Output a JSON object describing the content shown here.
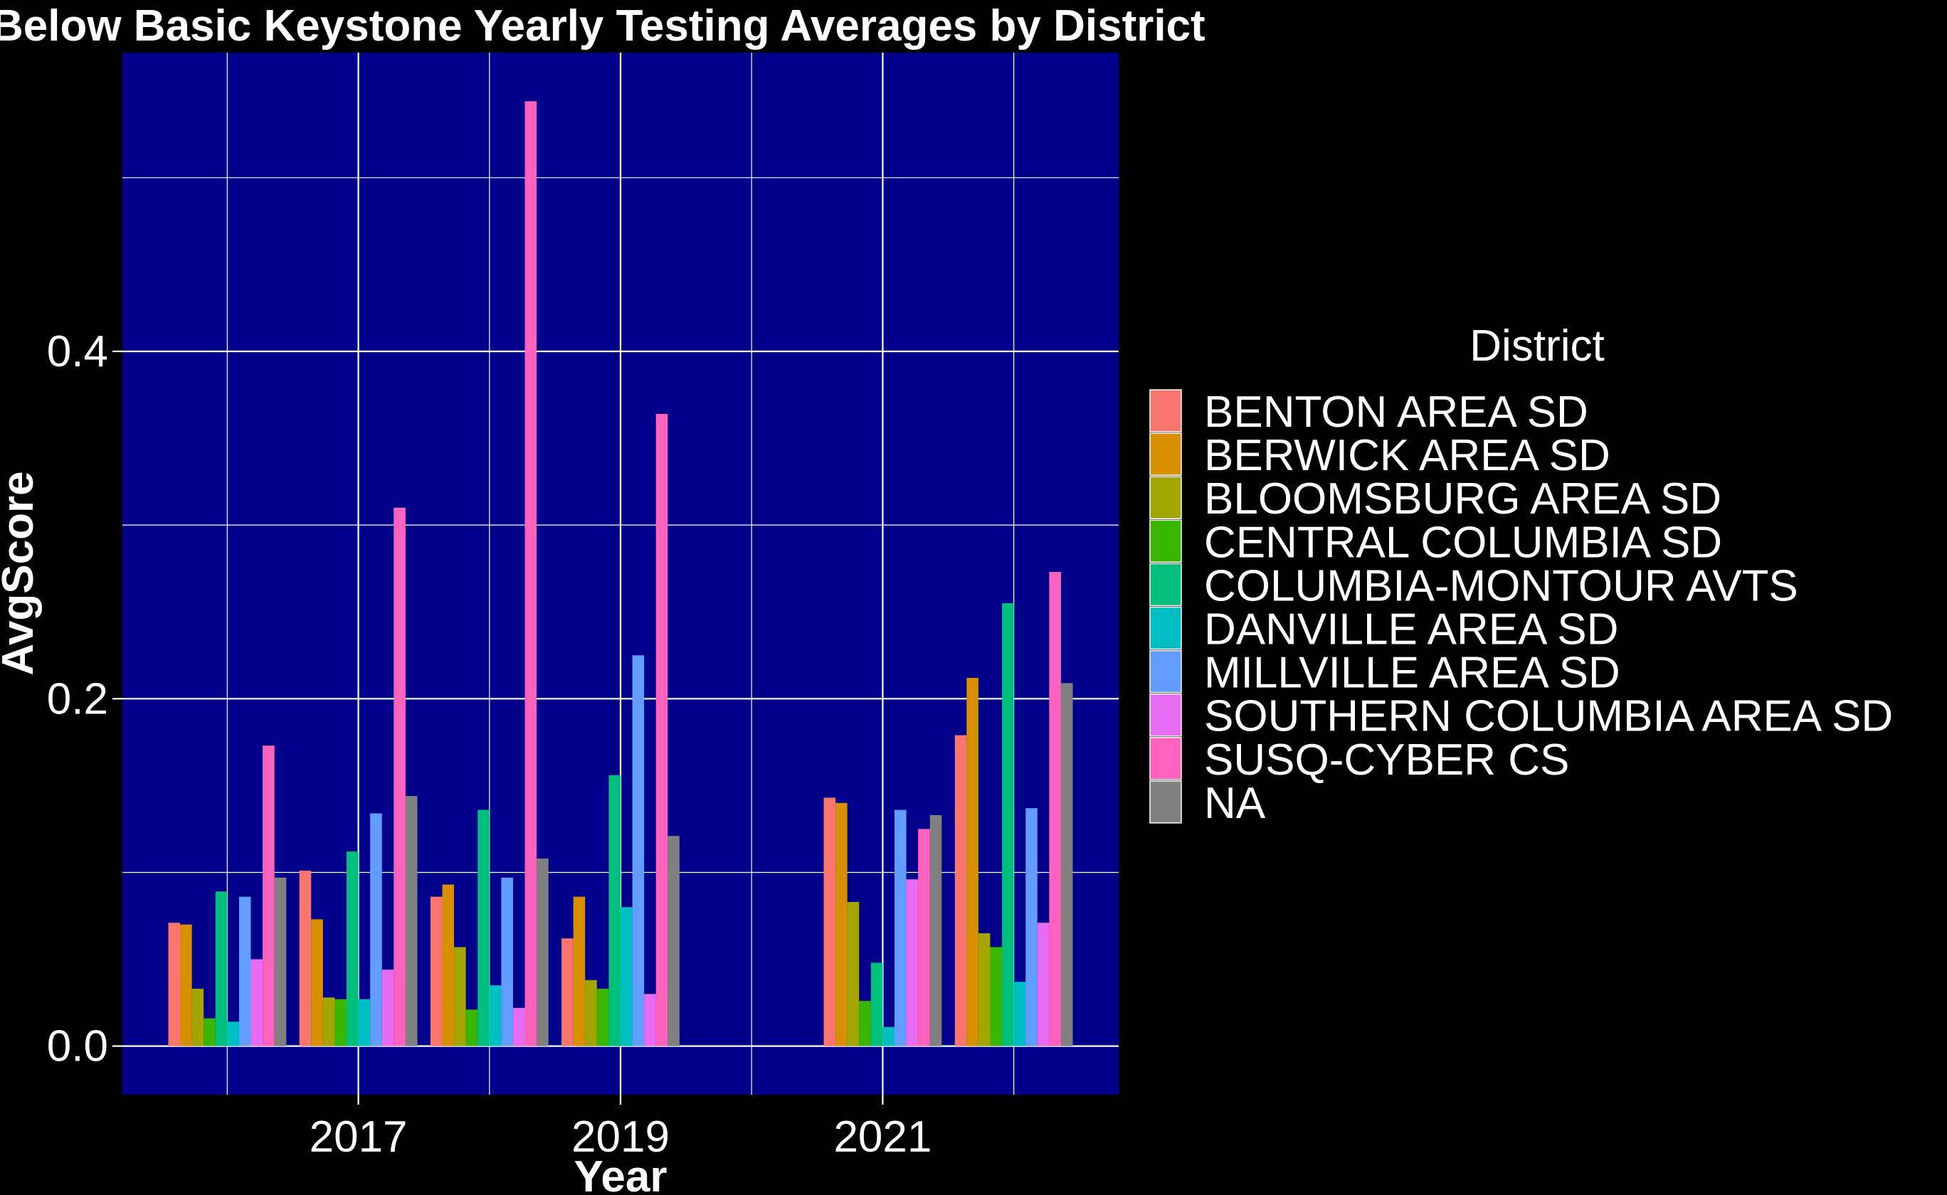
{
  "chart_data": {
    "type": "bar",
    "title": "Below Basic Keystone Yearly Testing Averages by District",
    "xlabel": "Year",
    "ylabel": "AvgScore",
    "x": [
      2016,
      2017,
      2018,
      2019,
      2020,
      2021,
      2022
    ],
    "xlim": [
      2015.2,
      2022.8
    ],
    "ylim": [
      -0.028,
      0.572
    ],
    "x_ticks": [
      2017,
      2019,
      2021
    ],
    "x_tick_labels": [
      "2017",
      "2019",
      "2021"
    ],
    "y_ticks": [
      0.0,
      0.2,
      0.4
    ],
    "y_tick_labels": [
      "0.0",
      "0.2",
      "0.4"
    ],
    "grid": true,
    "panel_background": "#00008B",
    "legend": {
      "title": "District",
      "position": "right"
    },
    "series": [
      {
        "name": "BENTON AREA SD",
        "color": "#F8766D",
        "values": [
          0.071,
          0.101,
          0.086,
          0.062,
          null,
          0.143,
          0.179
        ]
      },
      {
        "name": "BERWICK AREA SD",
        "color": "#D89000",
        "values": [
          0.07,
          0.073,
          0.093,
          0.086,
          null,
          0.14,
          0.212
        ]
      },
      {
        "name": "BLOOMSBURG AREA SD",
        "color": "#A3A500",
        "values": [
          0.033,
          0.028,
          0.057,
          0.038,
          null,
          0.083,
          0.065
        ]
      },
      {
        "name": "CENTRAL COLUMBIA SD",
        "color": "#39B600",
        "values": [
          0.016,
          0.027,
          0.021,
          0.033,
          null,
          0.026,
          0.057
        ]
      },
      {
        "name": "COLUMBIA-MONTOUR AVTS",
        "color": "#00BF7D",
        "values": [
          0.089,
          0.112,
          0.136,
          0.156,
          null,
          0.048,
          0.255
        ]
      },
      {
        "name": "DANVILLE AREA SD",
        "color": "#00BFC4",
        "values": [
          0.014,
          0.027,
          0.035,
          0.08,
          null,
          0.011,
          0.037
        ]
      },
      {
        "name": "MILLVILLE AREA SD",
        "color": "#619CFF",
        "values": [
          0.086,
          0.134,
          0.097,
          0.225,
          null,
          0.136,
          0.137
        ]
      },
      {
        "name": "SOUTHERN COLUMBIA AREA SD",
        "color": "#E76BF3",
        "values": [
          0.05,
          0.044,
          0.022,
          0.03,
          null,
          0.096,
          0.071
        ]
      },
      {
        "name": "SUSQ-CYBER CS",
        "color": "#FF62BC",
        "values": [
          0.173,
          0.31,
          0.544,
          0.364,
          null,
          0.125,
          0.273
        ]
      },
      {
        "name": "NA",
        "color": "#808080",
        "values": [
          0.097,
          0.144,
          0.108,
          0.121,
          null,
          0.133,
          0.209
        ]
      }
    ]
  }
}
